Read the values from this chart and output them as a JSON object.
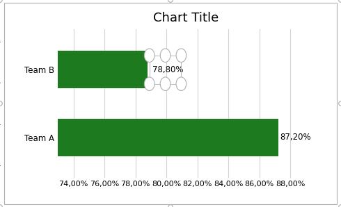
{
  "title": "Chart Title",
  "categories": [
    "Team A",
    "Team B"
  ],
  "values": [
    0.872,
    0.788
  ],
  "labels": [
    "87,20%",
    "78,80%"
  ],
  "bar_color": "#1e7a1e",
  "xlim": [
    0.73,
    0.895
  ],
  "xticks": [
    0.74,
    0.76,
    0.78,
    0.8,
    0.82,
    0.84,
    0.86,
    0.88
  ],
  "xtick_labels": [
    "74,00%",
    "76,00%",
    "78,00%",
    "80,00%",
    "82,00%",
    "84,00%",
    "86,00%",
    "88,00%"
  ],
  "grid_color": "#d3d3d3",
  "background_color": "#ffffff",
  "border_color": "#b0b0b0",
  "title_fontsize": 13,
  "label_fontsize": 8.5,
  "tick_fontsize": 8,
  "ytick_fontsize": 8.5,
  "handle_color": "#b0b0b0"
}
